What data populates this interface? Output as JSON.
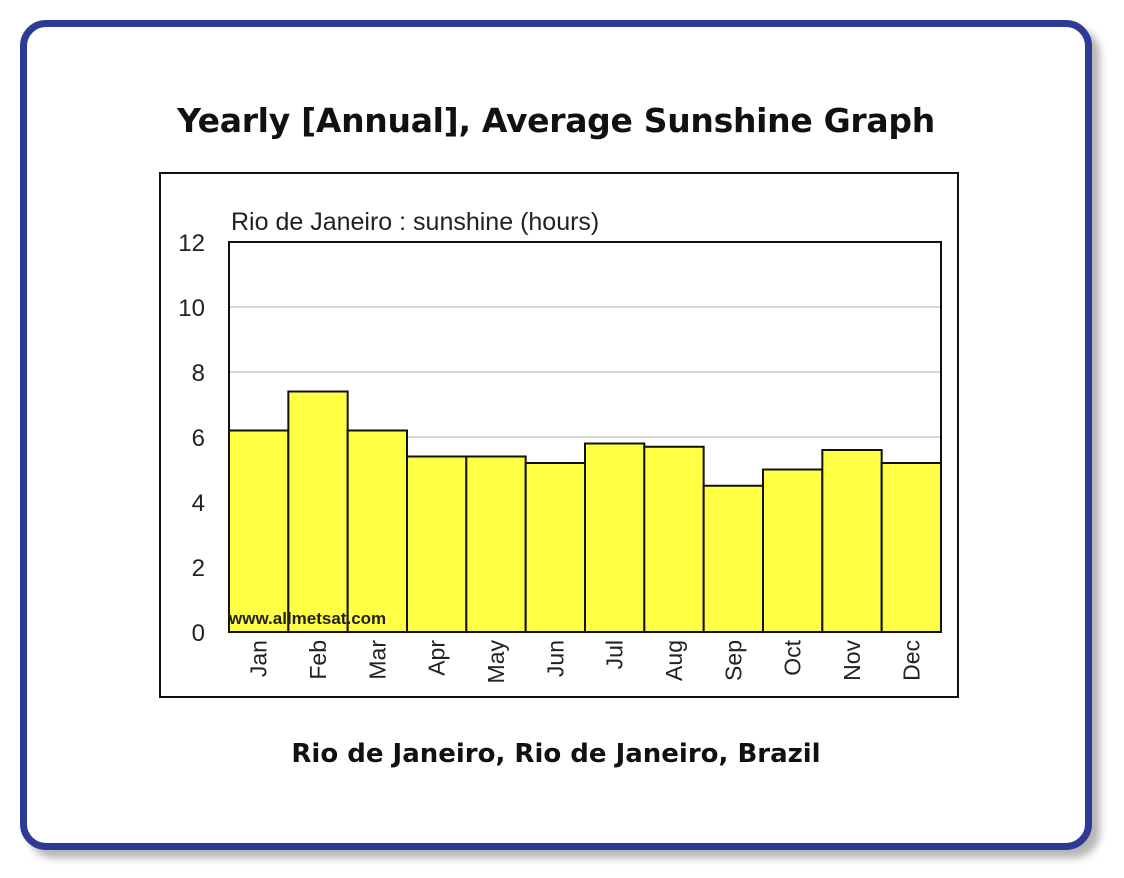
{
  "header": {
    "title": "Yearly [Annual], Average Sunshine Graph"
  },
  "footer": {
    "location": "Rio de Janeiro, Rio de Janeiro, Brazil"
  },
  "chart_data": {
    "type": "bar",
    "title": "Rio de Janeiro : sunshine (hours)",
    "watermark": "www.allmetsat.com",
    "xlabel": "",
    "ylabel": "",
    "categories": [
      "Jan",
      "Feb",
      "Mar",
      "Apr",
      "May",
      "Jun",
      "Jul",
      "Aug",
      "Sep",
      "Oct",
      "Nov",
      "Dec"
    ],
    "values": [
      6.2,
      7.4,
      6.2,
      5.4,
      5.4,
      5.2,
      5.8,
      5.7,
      4.5,
      5.0,
      5.6,
      5.2
    ],
    "ylim": [
      0,
      12
    ],
    "yticks": [
      0,
      2,
      4,
      6,
      8,
      10,
      12
    ],
    "grid": true,
    "bar_color": "#ffff44",
    "grid_color": "#c8c8c8"
  }
}
